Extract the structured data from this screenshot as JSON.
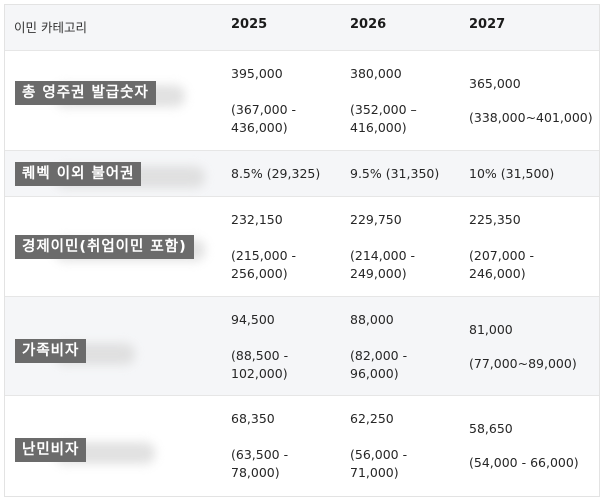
{
  "header": {
    "category": "이민 카테고리",
    "years": [
      "2025",
      "2026",
      "2027"
    ]
  },
  "rows": [
    {
      "label": "총 영주권 발급숫자",
      "y2025": {
        "value": "395,000",
        "range1": "(367,000 -",
        "range2": "436,000)"
      },
      "y2026": {
        "value": "380,000",
        "range1": "(352,000 –",
        "range2": "416,000)"
      },
      "y2027": {
        "value": "365,000",
        "range1": "(338,000~401,000)",
        "range2": ""
      }
    },
    {
      "label": "퀘벡 이외 불어권",
      "y2025": {
        "value": "8.5% (29,325)"
      },
      "y2026": {
        "value": "9.5% (31,350)"
      },
      "y2027": {
        "value": "10% (31,500)"
      }
    },
    {
      "label": "경제이민(취업이민 포함)",
      "y2025": {
        "value": "232,150",
        "range1": "(215,000 -",
        "range2": "256,000)"
      },
      "y2026": {
        "value": "229,750",
        "range1": "(214,000 -",
        "range2": "249,000)"
      },
      "y2027": {
        "value": "225,350",
        "range1": "(207,000 -",
        "range2": "246,000)"
      }
    },
    {
      "label": "가족비자",
      "y2025": {
        "value": "94,500",
        "range1": "(88,500 -",
        "range2": "102,000)"
      },
      "y2026": {
        "value": "88,000",
        "range1": "(82,000 -",
        "range2": "96,000)"
      },
      "y2027": {
        "value": "81,000",
        "range1": "(77,000~89,000)",
        "range2": ""
      }
    },
    {
      "label": "난민비자",
      "y2025": {
        "value": "68,350",
        "range1": "(63,500 -",
        "range2": "78,000)"
      },
      "y2026": {
        "value": "62,250",
        "range1": "(56,000 -",
        "range2": "71,000)"
      },
      "y2027": {
        "value": "58,650",
        "range1": "(54,000 - 66,000)",
        "range2": ""
      }
    }
  ]
}
